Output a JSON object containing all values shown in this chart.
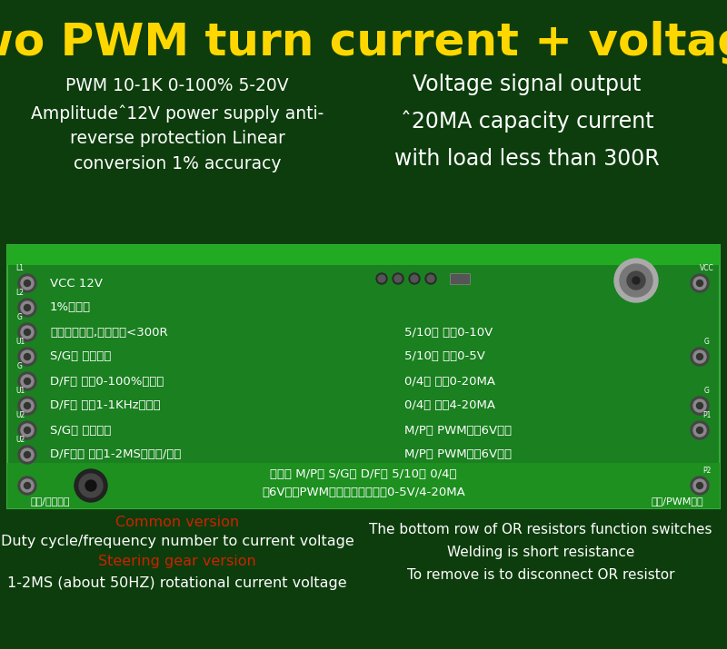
{
  "title": "Two PWM turn current + voltage",
  "title_color": "#FFD700",
  "title_fontsize": 36,
  "bg_color": "#0d3d0d",
  "left_text_line1": "PWM 10-1K 0-100% 5-20V",
  "left_text_line2": "Amplitudeˆ12V power supply anti-",
  "left_text_line3": "reverse protection Linear",
  "left_text_line4": "conversion 1% accuracy",
  "right_text_line1": "Voltage signal output",
  "right_text_line2": "ˆ20MA capacity current",
  "right_text_line3": "with load less than 300R",
  "pcb_bg": "#1a8a1a",
  "pcb_top_bar": "#20a020",
  "pcb_lines_left": [
    "VCC 12V",
    "1%高精度",
    "电压运放输出,电流带载<300R",
    "S/G开 普通版本",
    "D/F短 输入0-100%占空比",
    "D/F开 输入1-1KHz频率数",
    "S/G短 舟机版本",
    "D/F不用 固定1-2MS转电压/电流"
  ],
  "pcb_lines_right": [
    "5/10开 输入0-10V",
    "5/10短 输入0-5V",
    "0/4开 输入0-20MA",
    "0/4短 输入4-20MA",
    "M/P开 PWM幅倶6V以上",
    "M/P短 PWM幅倶6V以下"
  ],
  "left_pin_labels": [
    "L1",
    "L2",
    "G",
    "U1",
    "G",
    "U1",
    "U2"
  ],
  "right_pin_labels": [
    "VCC",
    "G",
    "G",
    "P1",
    "P2"
  ],
  "pcb_bottom1": "默认发 M/P短 S/G开 D/F短 5/10短 0/4短",
  "pcb_bottom2": "公6V以下PWM普通版本占空比转0-5V/4-20MA",
  "left_label": "电流/电压输出",
  "right_label": "电阶/PWM输入",
  "bottom_common": "Common version",
  "bottom_line1": "Duty cycle/frequency number to current voltage",
  "bottom_steering": "Steering gear version",
  "bottom_line2": "1-2MS (about 50HZ) rotational current voltage",
  "bottom_right1": "The bottom row of OR resistors function switches",
  "bottom_right2": "Welding is short resistance",
  "bottom_right3": "To remove is to disconnect OR resistor",
  "white_color": "#ffffff",
  "red_color": "#cc2200",
  "yellow_color": "#FFD700"
}
